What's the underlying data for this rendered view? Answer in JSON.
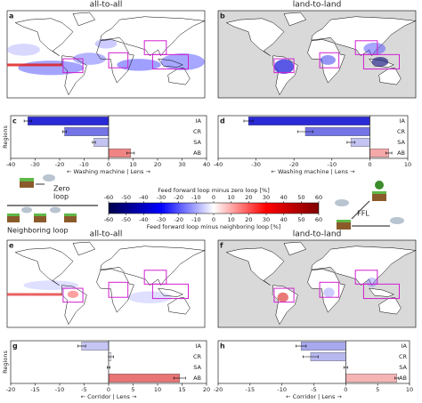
{
  "maps": [
    {
      "letter": "a",
      "title": "all-to-all"
    },
    {
      "letter": "b",
      "title": "land-to-land"
    },
    {
      "letter": "e",
      "title": "all-to-all"
    },
    {
      "letter": "f",
      "title": "land-to-land"
    }
  ],
  "chart_data": [
    {
      "type": "bar",
      "letter": "c",
      "categories": [
        "IA",
        "CR",
        "SA",
        "AB"
      ],
      "values": [
        -33,
        -18,
        -6,
        9
      ],
      "errors": [
        1.5,
        0.8,
        0.6,
        1.5
      ],
      "colors": [
        "#2a2ad6",
        "#7474e6",
        "#c4c4f2",
        "#f08484"
      ],
      "xlim": [
        -40,
        40
      ],
      "xticks": [
        -40,
        -30,
        -20,
        -10,
        0,
        10,
        20,
        30,
        40
      ],
      "xlabel": "← Washing machine | Lens →",
      "ylabel": "Regions"
    },
    {
      "type": "bar",
      "letter": "d",
      "categories": [
        "IA",
        "CR",
        "SA",
        "AB"
      ],
      "values": [
        -32,
        -17,
        -5,
        5
      ],
      "errors": [
        1.2,
        2,
        1,
        0.8
      ],
      "colors": [
        "#2a2ad6",
        "#7474e6",
        "#c4c4f2",
        "#f4a8a8"
      ],
      "xlim": [
        -40,
        10
      ],
      "xticks": [
        -40,
        -30,
        -20,
        -10,
        0,
        10
      ],
      "xlabel": "← Washing machine | Lens →"
    },
    {
      "type": "bar",
      "letter": "g",
      "categories": [
        "IA",
        "CR",
        "SA",
        "AB"
      ],
      "values": [
        -5.5,
        0.5,
        0,
        14.5
      ],
      "errors": [
        0.8,
        0.5,
        0.3,
        1.2
      ],
      "colors": [
        "#c6c6f4",
        "#f4f4fc",
        "#ffffff",
        "#e87474"
      ],
      "xlim": [
        -20,
        20
      ],
      "xticks": [
        -20,
        -15,
        -10,
        -5,
        0,
        5,
        10,
        15,
        20
      ],
      "xlabel": "← Corridor | Lens →",
      "ylabel": "Regions"
    },
    {
      "type": "bar",
      "letter": "h",
      "categories": [
        "IA",
        "CR",
        "SA",
        "AB"
      ],
      "values": [
        -7,
        -5.5,
        0,
        8
      ],
      "errors": [
        0.8,
        1.2,
        0.3,
        0.3
      ],
      "colors": [
        "#a8a8ee",
        "#b8b8f0",
        "#ffffff",
        "#f4b4b4"
      ],
      "xlim": [
        -20,
        10
      ],
      "xticks": [
        -20,
        -15,
        -10,
        -5,
        0,
        5,
        10
      ],
      "xlabel": "← Corridor | Lens →"
    }
  ],
  "colorbar": {
    "lim": [
      -60,
      60
    ],
    "ticks": [
      -60,
      -50,
      -40,
      -30,
      -20,
      -10,
      0,
      10,
      20,
      30,
      40,
      50,
      60
    ],
    "top_label": "Feed forward loop minus zero loop [%]",
    "bottom_label": "Feed forward loop minus neighboring loop [%]"
  },
  "legend": {
    "zero_loop": [
      "Zero",
      "loop"
    ],
    "neighboring_loop": "Neighboring loop",
    "ffl": "FFL"
  }
}
